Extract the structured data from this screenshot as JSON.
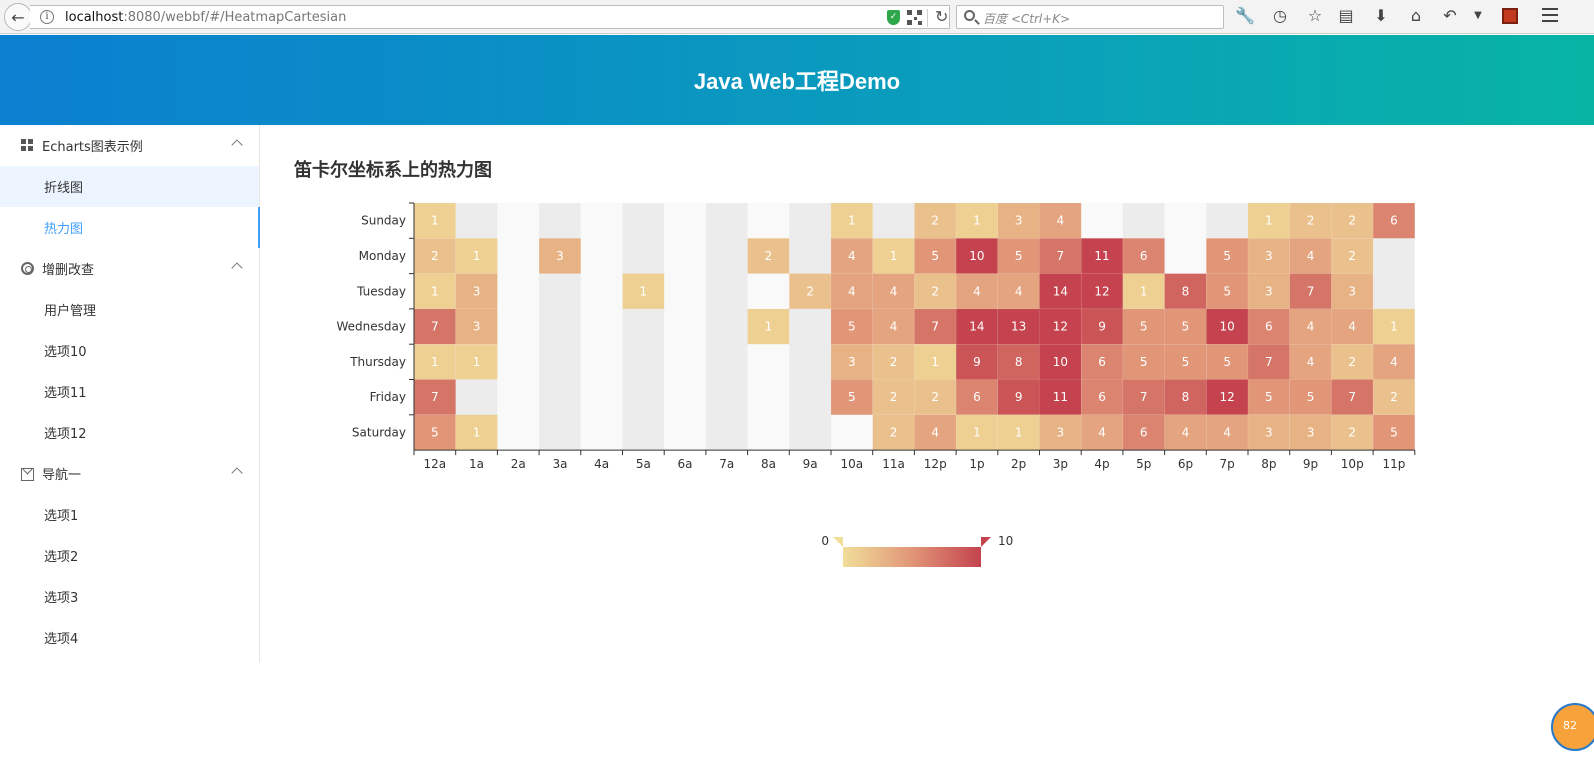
{
  "browser": {
    "url_host": "localhost",
    "url_rest": ":8080/webbf/#/HeatmapCartesian",
    "search_placeholder": "百度 <Ctrl+K>"
  },
  "header": {
    "title": "Java Web工程Demo"
  },
  "sidebar": {
    "groups": [
      {
        "label": "Echarts图表示例",
        "icon": "grid-icon",
        "items": [
          {
            "label": "折线图"
          },
          {
            "label": "热力图"
          }
        ]
      },
      {
        "label": "增删改查",
        "icon": "settings-icon",
        "items": [
          {
            "label": "用户管理"
          },
          {
            "label": "选项10"
          },
          {
            "label": "选项11"
          },
          {
            "label": "选项12"
          }
        ]
      },
      {
        "label": "导航一",
        "icon": "mail-icon",
        "items": [
          {
            "label": "选项1"
          },
          {
            "label": "选项2"
          },
          {
            "label": "选项3"
          },
          {
            "label": "选项4"
          }
        ]
      }
    ]
  },
  "main": {
    "title": "笛卡尔坐标系上的热力图"
  },
  "badge": {
    "text": "82"
  },
  "chart_data": {
    "type": "heatmap",
    "x_categories": [
      "12a",
      "1a",
      "2a",
      "3a",
      "4a",
      "5a",
      "6a",
      "7a",
      "8a",
      "9a",
      "10a",
      "11a",
      "12p",
      "1p",
      "2p",
      "3p",
      "4p",
      "5p",
      "6p",
      "7p",
      "8p",
      "9p",
      "10p",
      "11p"
    ],
    "y_categories": [
      "Sunday",
      "Monday",
      "Tuesday",
      "Wednesday",
      "Thursday",
      "Friday",
      "Saturday"
    ],
    "values": [
      [
        1,
        null,
        null,
        null,
        null,
        null,
        null,
        null,
        null,
        null,
        1,
        null,
        2,
        1,
        3,
        4,
        null,
        null,
        null,
        null,
        1,
        2,
        2,
        6
      ],
      [
        2,
        1,
        null,
        3,
        null,
        null,
        null,
        null,
        2,
        null,
        4,
        1,
        5,
        10,
        5,
        7,
        11,
        6,
        null,
        5,
        3,
        4,
        2,
        null
      ],
      [
        1,
        3,
        null,
        null,
        null,
        1,
        null,
        null,
        null,
        2,
        4,
        4,
        2,
        4,
        4,
        14,
        12,
        1,
        8,
        5,
        3,
        7,
        3,
        null
      ],
      [
        7,
        3,
        null,
        null,
        null,
        null,
        null,
        null,
        1,
        null,
        5,
        4,
        7,
        14,
        13,
        12,
        9,
        5,
        5,
        10,
        6,
        4,
        4,
        1
      ],
      [
        1,
        1,
        null,
        null,
        null,
        null,
        null,
        null,
        null,
        null,
        3,
        2,
        1,
        9,
        8,
        10,
        6,
        5,
        5,
        5,
        7,
        4,
        2,
        4
      ],
      [
        7,
        null,
        null,
        null,
        null,
        null,
        null,
        null,
        null,
        null,
        5,
        2,
        2,
        6,
        9,
        11,
        6,
        7,
        8,
        12,
        5,
        5,
        7,
        2
      ],
      [
        5,
        1,
        null,
        null,
        null,
        null,
        null,
        null,
        null,
        null,
        null,
        2,
        4,
        1,
        1,
        3,
        4,
        6,
        4,
        4,
        3,
        3,
        2,
        5
      ]
    ],
    "visual_map": {
      "min_label": "0",
      "max_label": "10",
      "min": 0,
      "max": 10,
      "color_low": "#f0de99",
      "color_high": "#c4434e"
    },
    "grid": false
  }
}
